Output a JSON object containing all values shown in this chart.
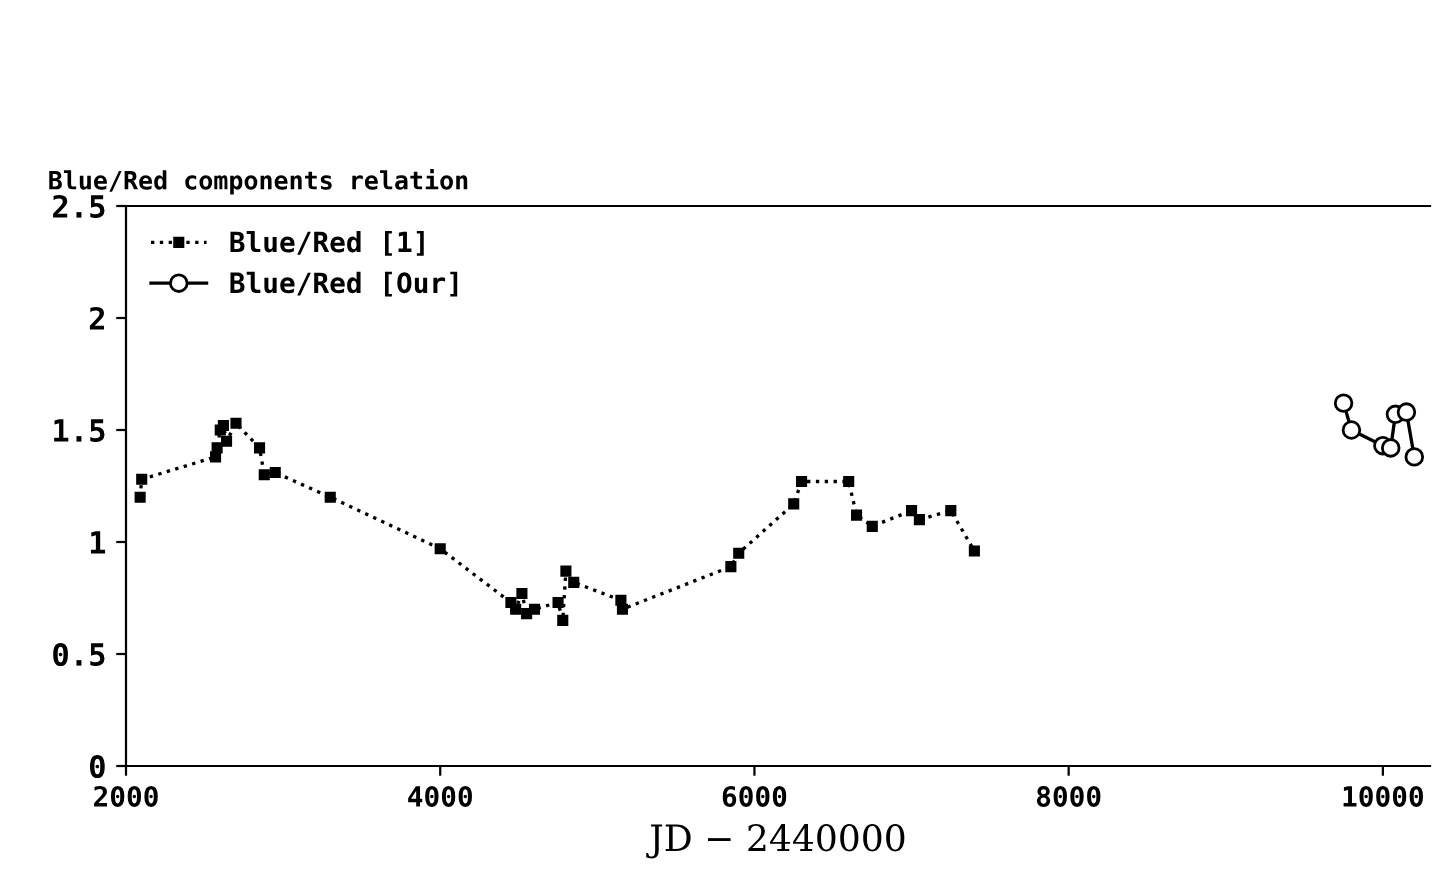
{
  "chart_data": {
    "type": "line",
    "title": "Blue/Red components relation",
    "xlabel": "JD − 2440000",
    "xlim": [
      2000,
      10300
    ],
    "xticks": [
      2000,
      4000,
      6000,
      8000,
      10000
    ],
    "ylim": [
      0,
      2.5
    ],
    "yticks": [
      0,
      0.5,
      1,
      1.5,
      2,
      2.5
    ],
    "grid": false,
    "legend": "top left",
    "series": [
      {
        "name": "Blue/Red [1]",
        "color": "#000000",
        "marker": "square",
        "line_style": "dotted",
        "x": [
          2090,
          2100,
          2570,
          2580,
          2600,
          2620,
          2640,
          2700,
          2850,
          2880,
          2950,
          3300,
          4000,
          4450,
          4480,
          4520,
          4550,
          4600,
          4750,
          4780,
          4800,
          4850,
          5150,
          5160,
          5850,
          5900,
          6250,
          6300,
          6600,
          6650,
          6750,
          7000,
          7050,
          7250,
          7400
        ],
        "values": [
          1.2,
          1.28,
          1.38,
          1.42,
          1.5,
          1.52,
          1.45,
          1.53,
          1.42,
          1.3,
          1.31,
          1.2,
          0.97,
          0.73,
          0.7,
          0.77,
          0.68,
          0.7,
          0.73,
          0.65,
          0.87,
          0.82,
          0.74,
          0.7,
          0.89,
          0.95,
          1.17,
          1.27,
          1.27,
          1.12,
          1.07,
          1.14,
          1.1,
          1.14,
          0.96
        ]
      },
      {
        "name": "Blue/Red [Our]",
        "color": "#000000",
        "marker": "circle",
        "line_style": "solid",
        "x": [
          9750,
          9800,
          10000,
          10050,
          10080,
          10150,
          10200
        ],
        "values": [
          1.62,
          1.5,
          1.43,
          1.42,
          1.57,
          1.58,
          1.38
        ]
      }
    ]
  }
}
